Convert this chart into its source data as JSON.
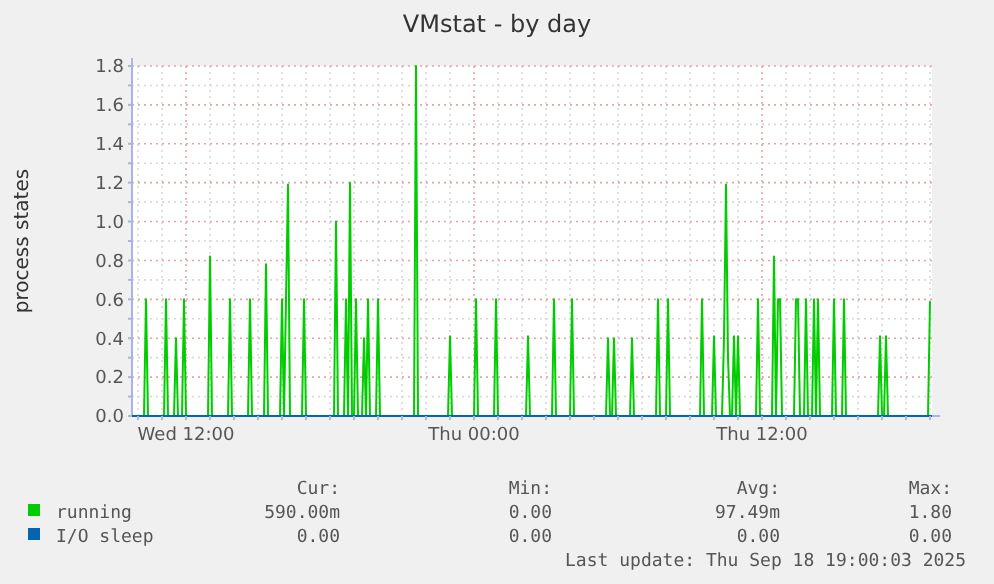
{
  "chart_data": {
    "type": "line",
    "title": "VMstat - by day",
    "ylabel": "process states",
    "xlim": [
      "2025-09-17T09:45",
      "2025-09-18T19:05"
    ],
    "ylim": [
      0,
      1.8
    ],
    "xticks": [
      {
        "value": "2025-09-17T10:00",
        "label": null
      },
      {
        "value": "2025-09-17T11:00",
        "label": null
      },
      {
        "value": "2025-09-17T12:00",
        "label": "Wed 12:00"
      },
      {
        "value": "2025-09-17T13:00",
        "label": null
      },
      {
        "value": "2025-09-17T14:00",
        "label": null
      },
      {
        "value": "2025-09-17T15:00",
        "label": null
      },
      {
        "value": "2025-09-17T16:00",
        "label": null
      },
      {
        "value": "2025-09-17T17:00",
        "label": null
      },
      {
        "value": "2025-09-17T18:00",
        "label": null
      },
      {
        "value": "2025-09-17T19:00",
        "label": null
      },
      {
        "value": "2025-09-17T20:00",
        "label": null
      },
      {
        "value": "2025-09-17T21:00",
        "label": null
      },
      {
        "value": "2025-09-17T22:00",
        "label": null
      },
      {
        "value": "2025-09-17T23:00",
        "label": null
      },
      {
        "value": "2025-09-18T00:00",
        "label": "Thu 00:00"
      },
      {
        "value": "2025-09-18T01:00",
        "label": null
      },
      {
        "value": "2025-09-18T02:00",
        "label": null
      },
      {
        "value": "2025-09-18T03:00",
        "label": null
      },
      {
        "value": "2025-09-18T04:00",
        "label": null
      },
      {
        "value": "2025-09-18T05:00",
        "label": null
      },
      {
        "value": "2025-09-18T06:00",
        "label": null
      },
      {
        "value": "2025-09-18T07:00",
        "label": null
      },
      {
        "value": "2025-09-18T08:00",
        "label": null
      },
      {
        "value": "2025-09-18T09:00",
        "label": null
      },
      {
        "value": "2025-09-18T10:00",
        "label": null
      },
      {
        "value": "2025-09-18T11:00",
        "label": null
      },
      {
        "value": "2025-09-18T12:00",
        "label": "Thu 12:00"
      },
      {
        "value": "2025-09-18T13:00",
        "label": null
      },
      {
        "value": "2025-09-18T14:00",
        "label": null
      },
      {
        "value": "2025-09-18T15:00",
        "label": null
      },
      {
        "value": "2025-09-18T16:00",
        "label": null
      },
      {
        "value": "2025-09-18T17:00",
        "label": null
      },
      {
        "value": "2025-09-18T18:00",
        "label": null
      },
      {
        "value": "2025-09-18T19:00",
        "label": null
      }
    ],
    "yticks": [
      {
        "value": 0,
        "label": "0.0"
      },
      {
        "value": 0.1,
        "label": null
      },
      0.2,
      {
        "value": 0.3,
        "label": null
      },
      0.4,
      {
        "value": 0.5,
        "label": null
      },
      0.6,
      {
        "value": 0.7,
        "label": null
      },
      0.8,
      {
        "value": 0.9,
        "label": null
      },
      {
        "value": 1,
        "label": "1.0"
      },
      {
        "value": 1.1,
        "label": null
      },
      1.2,
      {
        "value": 1.3,
        "label": null
      },
      1.4,
      {
        "value": 1.5,
        "label": null
      },
      1.6,
      {
        "value": 1.7,
        "label": null
      },
      1.8
    ],
    "grid": true,
    "legend": "bottom",
    "marker": "none",
    "line_style": "solid",
    "series": [
      {
        "name": "running",
        "color": "#00cc00",
        "x": [
          "2025-09-17T09:45",
          "2025-09-17T10:15",
          "2025-09-17T10:20",
          "2025-09-17T10:25",
          "2025-09-17T11:05",
          "2025-09-17T11:10",
          "2025-09-17T11:15",
          "2025-09-17T11:30",
          "2025-09-17T11:35",
          "2025-09-17T11:40",
          "2025-09-17T11:50",
          "2025-09-17T11:55",
          "2025-09-17T12:00",
          "2025-09-17T12:55",
          "2025-09-17T13:00",
          "2025-09-17T13:05",
          "2025-09-17T13:45",
          "2025-09-17T13:50",
          "2025-09-17T13:55",
          "2025-09-17T14:35",
          "2025-09-17T14:40",
          "2025-09-17T14:45",
          "2025-09-17T15:15",
          "2025-09-17T15:20",
          "2025-09-17T15:25",
          "2025-09-17T15:55",
          "2025-09-17T16:00",
          "2025-09-17T16:05",
          "2025-09-17T16:10",
          "2025-09-17T16:15",
          "2025-09-17T16:20",
          "2025-09-17T16:50",
          "2025-09-17T16:55",
          "2025-09-17T17:00",
          "2025-09-17T18:10",
          "2025-09-17T18:15",
          "2025-09-17T18:20",
          "2025-09-17T18:35",
          "2025-09-17T18:40",
          "2025-09-17T18:45",
          "2025-09-17T18:50",
          "2025-09-17T18:55",
          "2025-09-17T19:00",
          "2025-09-17T19:05",
          "2025-09-17T19:10",
          "2025-09-17T19:20",
          "2025-09-17T19:25",
          "2025-09-17T19:30",
          "2025-09-17T19:35",
          "2025-09-17T19:40",
          "2025-09-17T19:55",
          "2025-09-17T20:00",
          "2025-09-17T20:05",
          "2025-09-17T21:30",
          "2025-09-17T21:35",
          "2025-09-17T21:40",
          "2025-09-17T22:55",
          "2025-09-17T23:00",
          "2025-09-17T23:05",
          "2025-09-18T00:00",
          "2025-09-18T00:05",
          "2025-09-18T00:10",
          "2025-09-18T00:50",
          "2025-09-18T00:55",
          "2025-09-18T01:00",
          "2025-09-18T02:10",
          "2025-09-18T02:15",
          "2025-09-18T02:20",
          "2025-09-18T03:15",
          "2025-09-18T03:20",
          "2025-09-18T03:25",
          "2025-09-18T04:00",
          "2025-09-18T04:05",
          "2025-09-18T04:10",
          "2025-09-18T05:30",
          "2025-09-18T05:35",
          "2025-09-18T05:40",
          "2025-09-18T05:45",
          "2025-09-18T05:50",
          "2025-09-18T05:55",
          "2025-09-18T06:30",
          "2025-09-18T06:35",
          "2025-09-18T06:40",
          "2025-09-18T07:35",
          "2025-09-18T07:40",
          "2025-09-18T07:45",
          "2025-09-18T08:00",
          "2025-09-18T08:05",
          "2025-09-18T08:10",
          "2025-09-18T09:25",
          "2025-09-18T09:30",
          "2025-09-18T09:35",
          "2025-09-18T09:55",
          "2025-09-18T10:00",
          "2025-09-18T10:05",
          "2025-09-18T10:20",
          "2025-09-18T10:25",
          "2025-09-18T10:30",
          "2025-09-18T10:35",
          "2025-09-18T10:40",
          "2025-09-18T10:45",
          "2025-09-18T10:50",
          "2025-09-18T10:55",
          "2025-09-18T11:00",
          "2025-09-18T11:05",
          "2025-09-18T11:45",
          "2025-09-18T11:50",
          "2025-09-18T11:55",
          "2025-09-18T12:25",
          "2025-09-18T12:30",
          "2025-09-18T12:35",
          "2025-09-18T12:40",
          "2025-09-18T12:45",
          "2025-09-18T12:50",
          "2025-09-18T13:20",
          "2025-09-18T13:25",
          "2025-09-18T13:30",
          "2025-09-18T13:35",
          "2025-09-18T13:45",
          "2025-09-18T13:50",
          "2025-09-18T13:55",
          "2025-09-18T14:05",
          "2025-09-18T14:10",
          "2025-09-18T14:15",
          "2025-09-18T14:20",
          "2025-09-18T14:25",
          "2025-09-18T14:55",
          "2025-09-18T15:00",
          "2025-09-18T15:05",
          "2025-09-18T15:20",
          "2025-09-18T15:25",
          "2025-09-18T15:30",
          "2025-09-18T16:50",
          "2025-09-18T16:55",
          "2025-09-18T17:00",
          "2025-09-18T17:05",
          "2025-09-18T17:10",
          "2025-09-18T17:15",
          "2025-09-18T18:55",
          "2025-09-18T19:00"
        ],
        "values": [
          0,
          0,
          0.6,
          0,
          0,
          0.6,
          0,
          0,
          0.4,
          0,
          0,
          0.6,
          0,
          0,
          0.82,
          0,
          0,
          0.6,
          0,
          0,
          0.6,
          0,
          0,
          0.78,
          0,
          0,
          0.6,
          0,
          0.6,
          1.19,
          0,
          0,
          0.6,
          0,
          0,
          1.0,
          0,
          0,
          0.6,
          0,
          1.2,
          0,
          0,
          0.6,
          0,
          0,
          0.4,
          0,
          0.6,
          0,
          0,
          0.6,
          0,
          0,
          1.8,
          0,
          0,
          0.41,
          0,
          0,
          0.6,
          0,
          0,
          0.6,
          0,
          0,
          0.41,
          0,
          0,
          0.6,
          0,
          0,
          0.6,
          0,
          0,
          0.4,
          0,
          0,
          0.4,
          0,
          0,
          0.4,
          0,
          0,
          0.6,
          0,
          0,
          0.6,
          0,
          0,
          0.6,
          0,
          0,
          0.41,
          0,
          0,
          0.4,
          1.19,
          0.3,
          0,
          0,
          0.41,
          0,
          0.41,
          0,
          0,
          0.6,
          0,
          0,
          0.82,
          0,
          0.6,
          0.6,
          0,
          0,
          0.6,
          0.6,
          0,
          0,
          0.6,
          0,
          0,
          0.6,
          0,
          0.6,
          0,
          0,
          0.6,
          0,
          0,
          0.6,
          0,
          0,
          0.41,
          0,
          0,
          0.41,
          0,
          0,
          0.59
        ]
      },
      {
        "name": "I/O sleep",
        "color": "#0066b3",
        "x": [
          "2025-09-17T09:45",
          "2025-09-18T19:05"
        ],
        "values": [
          0,
          0
        ]
      }
    ],
    "annotations": [
      "Cur:",
      "Min:",
      "Avg:",
      "Max:",
      "590.00m",
      "0.00",
      "97.49m",
      "1.80",
      "0.00",
      "0.00",
      "0.00",
      "0.00",
      "Last update: Thu Sep 18 19:00:03 2025"
    ]
  }
}
